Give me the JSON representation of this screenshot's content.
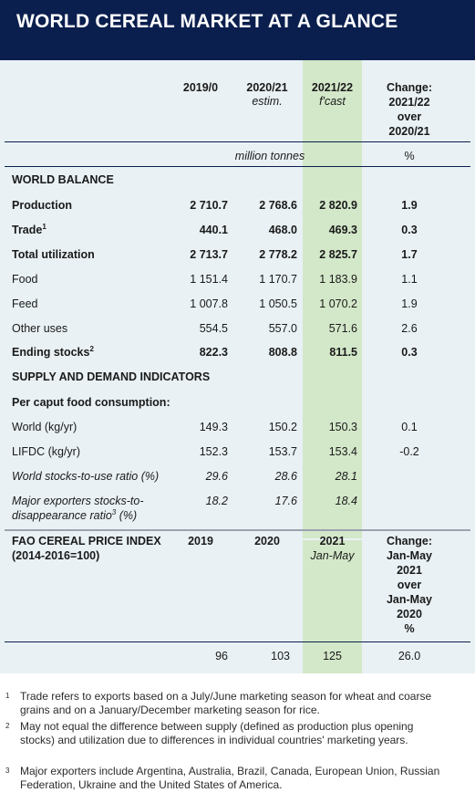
{
  "title": "WORLD CEREAL MARKET AT A GLANCE",
  "columns": {
    "c1": "2019/0",
    "c2_line1": "2020/21",
    "c2_line2": "estim.",
    "c3_line1": "2021/22",
    "c3_line2": "f'cast",
    "c4_line1": "Change:",
    "c4_line2": "2021/22",
    "c4_line3": "over",
    "c4_line4": "2020/21"
  },
  "units": {
    "main": "million tonnes",
    "change": "%"
  },
  "sections": {
    "world_balance": "WORLD BALANCE",
    "supply_demand": "SUPPLY AND DEMAND INDICATORS",
    "per_caput": "Per caput food consumption:"
  },
  "rows": {
    "production": {
      "label": "Production",
      "v1": "2 710.7",
      "v2": "2 768.6",
      "v3": "2 820.9",
      "v4": "1.9"
    },
    "trade": {
      "label": "Trade",
      "sup": "1",
      "v1": "440.1",
      "v2": "468.0",
      "v3": "469.3",
      "v4": "0.3"
    },
    "total_utilization": {
      "label": "Total utilization",
      "v1": "2 713.7",
      "v2": "2 778.2",
      "v3": "2 825.7",
      "v4": "1.7"
    },
    "food": {
      "label": "Food",
      "v1": "1 151.4",
      "v2": "1 170.7",
      "v3": "1 183.9",
      "v4": "1.1"
    },
    "feed": {
      "label": "Feed",
      "v1": "1 007.8",
      "v2": "1 050.5",
      "v3": "1 070.2",
      "v4": "1.9"
    },
    "other_uses": {
      "label": "Other uses",
      "v1": "554.5",
      "v2": "557.0",
      "v3": "571.6",
      "v4": "2.6"
    },
    "ending_stocks": {
      "label": "Ending stocks",
      "sup": "2",
      "v1": "822.3",
      "v2": "808.8",
      "v3": "811.5",
      "v4": "0.3"
    },
    "world_kg": {
      "label": "World (kg/yr)",
      "v1": "149.3",
      "v2": "150.2",
      "v3": "150.3",
      "v4": "0.1"
    },
    "lifdc_kg": {
      "label": "LIFDC (kg/yr)",
      "v1": "152.3",
      "v2": "153.7",
      "v3": "153.4",
      "v4": "-0.2"
    },
    "stocks_to_use": {
      "label": "World stocks-to-use ratio (%)",
      "v1": "29.6",
      "v2": "28.6",
      "v3": "28.1"
    },
    "major_exporters": {
      "label_line1": "Major exporters stocks-to-",
      "label_line2": "disappearance ratio",
      "sup": "3",
      "label_tail": " (%)",
      "v1": "18.2",
      "v2": "17.6",
      "v3": "18.4"
    }
  },
  "price_index": {
    "label_line1": "FAO CEREAL PRICE INDEX",
    "label_line2": "(2014-2016=100)",
    "h1": "2019",
    "h2": "2020",
    "h3_line1": "2021",
    "h3_line2": "Jan-May",
    "h4_lines": [
      "Change:",
      "Jan-May",
      "2021",
      "over",
      "Jan-May",
      "2020",
      "%"
    ],
    "v1": "96",
    "v2": "103",
    "v3": "125",
    "v4": "26.0"
  },
  "footnotes": [
    {
      "mark": "1",
      "text": "Trade refers to exports based on a July/June marketing season for wheat and coarse grains and on a January/December marketing season for rice."
    },
    {
      "mark": "2",
      "text": "May not equal the difference between supply (defined as production plus opening stocks) and utilization due to differences in individual countries' marketing years."
    },
    {
      "mark": "3",
      "text": "Major exporters include Argentina, Australia, Brazil, Canada, European Union, Russian Federation, Ukraine and the United States of America."
    }
  ],
  "colors": {
    "header_bg": "#0b1f4e",
    "table_bg": "#e9f1f4",
    "highlight_col": "#d3e8c9"
  }
}
